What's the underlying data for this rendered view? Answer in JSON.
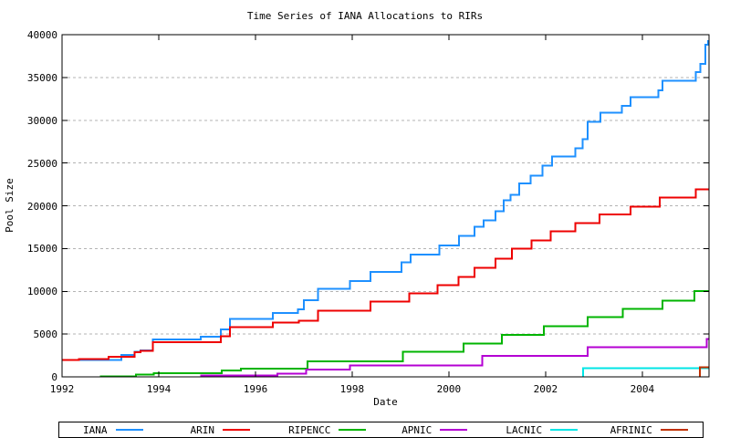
{
  "chart_data": {
    "type": "line",
    "style": "steps",
    "title": "Time Series of IANA Allocations to RIRs",
    "xlabel": "Date",
    "ylabel": "Pool Size",
    "xlim": [
      1992,
      2005.38
    ],
    "ylim": [
      0,
      40000
    ],
    "x_ticks": [
      1992,
      1994,
      1996,
      1998,
      2000,
      2002,
      2004
    ],
    "y_ticks": [
      0,
      5000,
      10000,
      15000,
      20000,
      25000,
      30000,
      35000,
      40000
    ],
    "grid": "horizontal dashed gridlines at y ticks",
    "grid_color": "#b3b3b3",
    "legend_position": "bottom",
    "series": [
      {
        "name": "IANA",
        "color": "#1e90ff",
        "points": [
          [
            1992.0,
            1950
          ],
          [
            1993.23,
            2560
          ],
          [
            1993.5,
            2950
          ],
          [
            1993.62,
            3100
          ],
          [
            1993.88,
            4350
          ],
          [
            1994.87,
            4700
          ],
          [
            1995.28,
            5550
          ],
          [
            1995.47,
            6800
          ],
          [
            1996.36,
            7450
          ],
          [
            1996.88,
            7900
          ],
          [
            1997.0,
            8950
          ],
          [
            1997.29,
            10300
          ],
          [
            1997.95,
            11200
          ],
          [
            1998.38,
            12250
          ],
          [
            1999.02,
            13400
          ],
          [
            1999.21,
            14300
          ],
          [
            1999.8,
            15350
          ],
          [
            2000.21,
            16500
          ],
          [
            2000.53,
            17570
          ],
          [
            2000.72,
            18270
          ],
          [
            2000.96,
            19340
          ],
          [
            2001.13,
            20650
          ],
          [
            2001.28,
            21290
          ],
          [
            2001.45,
            22610
          ],
          [
            2001.69,
            23500
          ],
          [
            2001.94,
            24670
          ],
          [
            2002.13,
            25740
          ],
          [
            2002.62,
            26700
          ],
          [
            2002.77,
            27770
          ],
          [
            2002.87,
            29840
          ],
          [
            2003.13,
            30900
          ],
          [
            2003.58,
            31680
          ],
          [
            2003.76,
            32670
          ],
          [
            2004.33,
            33490
          ],
          [
            2004.42,
            34640
          ],
          [
            2005.11,
            35630
          ],
          [
            2005.2,
            36590
          ],
          [
            2005.3,
            38830
          ],
          [
            2005.36,
            39250
          ]
        ]
      },
      {
        "name": "ARIN",
        "color": "#ee0000",
        "points": [
          [
            1992.0,
            1950
          ],
          [
            1992.35,
            2070
          ],
          [
            1992.96,
            2350
          ],
          [
            1993.5,
            2900
          ],
          [
            1993.62,
            3050
          ],
          [
            1993.88,
            4050
          ],
          [
            1995.28,
            4750
          ],
          [
            1995.47,
            5830
          ],
          [
            1996.36,
            6370
          ],
          [
            1996.9,
            6550
          ],
          [
            1997.29,
            7715
          ],
          [
            1998.38,
            8780
          ],
          [
            1999.18,
            9740
          ],
          [
            1999.77,
            10740
          ],
          [
            2000.2,
            11700
          ],
          [
            2000.53,
            12770
          ],
          [
            2000.96,
            13840
          ],
          [
            2001.3,
            14970
          ],
          [
            2001.71,
            15970
          ],
          [
            2002.11,
            17040
          ],
          [
            2002.62,
            18000
          ],
          [
            2003.12,
            18990
          ],
          [
            2003.76,
            19870
          ],
          [
            2004.36,
            20940
          ],
          [
            2005.11,
            21940
          ]
        ]
      },
      {
        "name": "RIPENCC",
        "color": "#00b400",
        "points": [
          [
            1992.8,
            70
          ],
          [
            1993.53,
            250
          ],
          [
            1993.9,
            420
          ],
          [
            1995.3,
            750
          ],
          [
            1995.7,
            960
          ],
          [
            1997.08,
            1810
          ],
          [
            1999.05,
            2950
          ],
          [
            2000.3,
            3870
          ],
          [
            2001.1,
            4900
          ],
          [
            2001.96,
            5940
          ],
          [
            2002.87,
            6965
          ],
          [
            2003.6,
            7970
          ],
          [
            2004.42,
            8930
          ],
          [
            2005.08,
            10030
          ]
        ]
      },
      {
        "name": "APNIC",
        "color": "#b400d3",
        "points": [
          [
            1994.88,
            140
          ],
          [
            1996.45,
            400
          ],
          [
            1997.05,
            850
          ],
          [
            1997.95,
            1330
          ],
          [
            2000.69,
            2450
          ],
          [
            2002.87,
            3450
          ],
          [
            2005.33,
            4450
          ]
        ]
      },
      {
        "name": "LACNIC",
        "color": "#00e6e6",
        "points": [
          [
            2002.78,
            1030
          ]
        ]
      },
      {
        "name": "AFRINIC",
        "color": "#c03000",
        "points": [
          [
            2005.19,
            1140
          ]
        ]
      }
    ]
  }
}
